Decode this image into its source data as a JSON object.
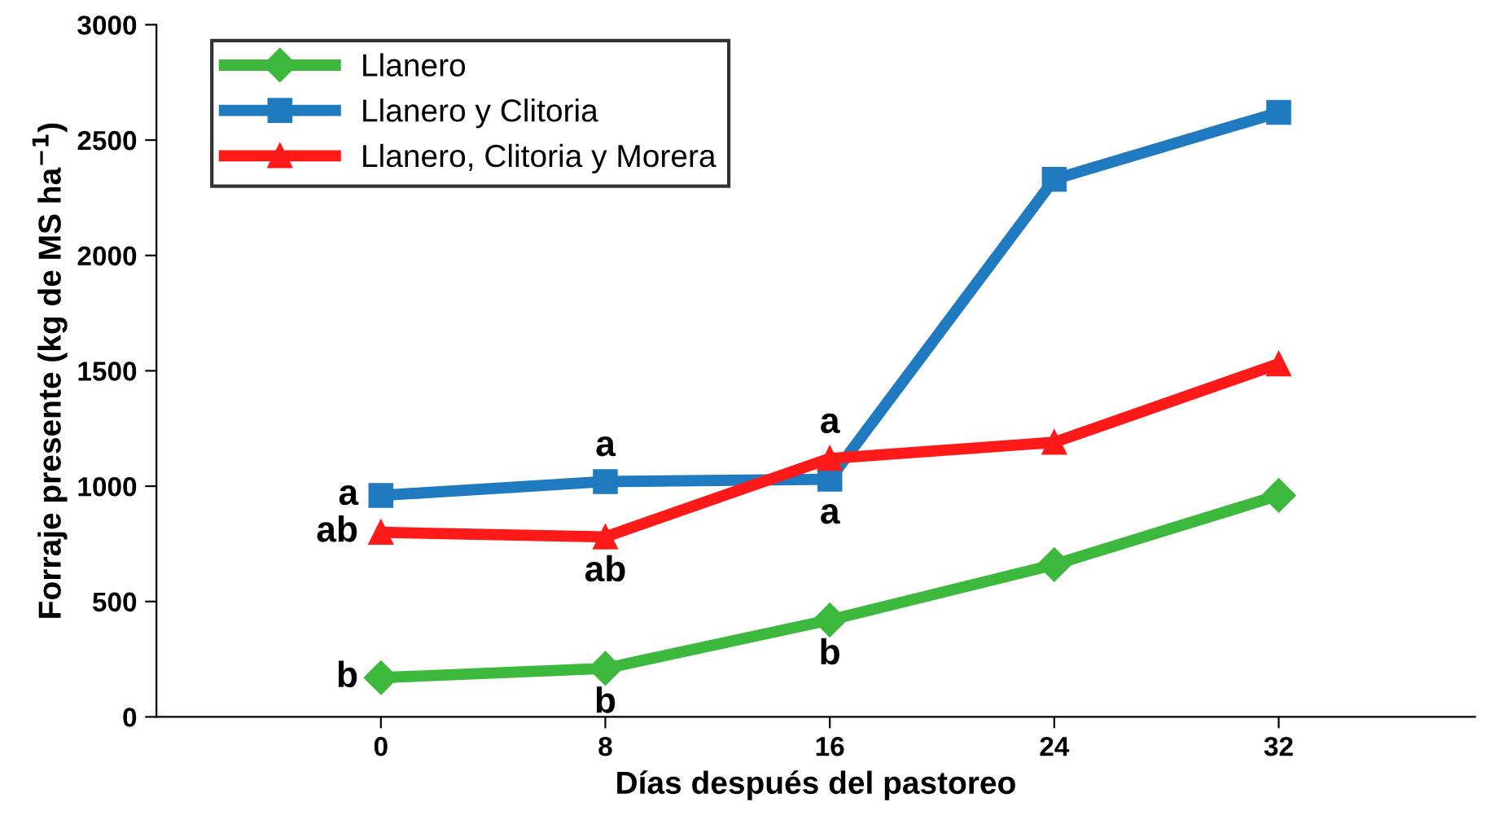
{
  "chart_data": {
    "type": "line",
    "xlabel": "Días después del pastoreo",
    "ylabel": "Forraje presente (kg de MS ha$^{−1}$)",
    "x": [
      0,
      8,
      16,
      24,
      32
    ],
    "xlim": [
      -8,
      39
    ],
    "xticks": [
      0,
      8,
      16,
      24,
      32
    ],
    "ylim": [
      0,
      3000
    ],
    "yticks": [
      0,
      500,
      1000,
      1500,
      2000,
      2500,
      3000
    ],
    "grid": false,
    "legend": "top left",
    "line_style": "solid",
    "series": [
      {
        "name": "Llanero",
        "color": "#3cb83c",
        "marker": "diamond",
        "values": [
          170,
          210,
          420,
          660,
          960
        ]
      },
      {
        "name": "Llanero y Clitoria",
        "color": "#1f7ac0",
        "marker": "square",
        "values": [
          960,
          1020,
          1030,
          2330,
          2620
        ]
      },
      {
        "name": "Llanero, Clitoria y Morera",
        "color": "#ff1a1a",
        "marker": "triangle",
        "values": [
          800,
          780,
          1120,
          1190,
          1530
        ]
      }
    ],
    "annotations": [
      {
        "text": "a",
        "x": 0,
        "y": 960
      },
      {
        "text": "ab",
        "x": 0,
        "y": 800
      },
      {
        "text": "b",
        "x": 0,
        "y": 170
      },
      {
        "text": "a",
        "x": 8,
        "y": 1020
      },
      {
        "text": "ab",
        "x": 8,
        "y": 780
      },
      {
        "text": "b",
        "x": 8,
        "y": 210
      },
      {
        "text": "a",
        "x": 16,
        "y": 1120
      },
      {
        "text": "a",
        "x": 16,
        "y": 1030
      },
      {
        "text": "b",
        "x": 16,
        "y": 420
      }
    ]
  }
}
